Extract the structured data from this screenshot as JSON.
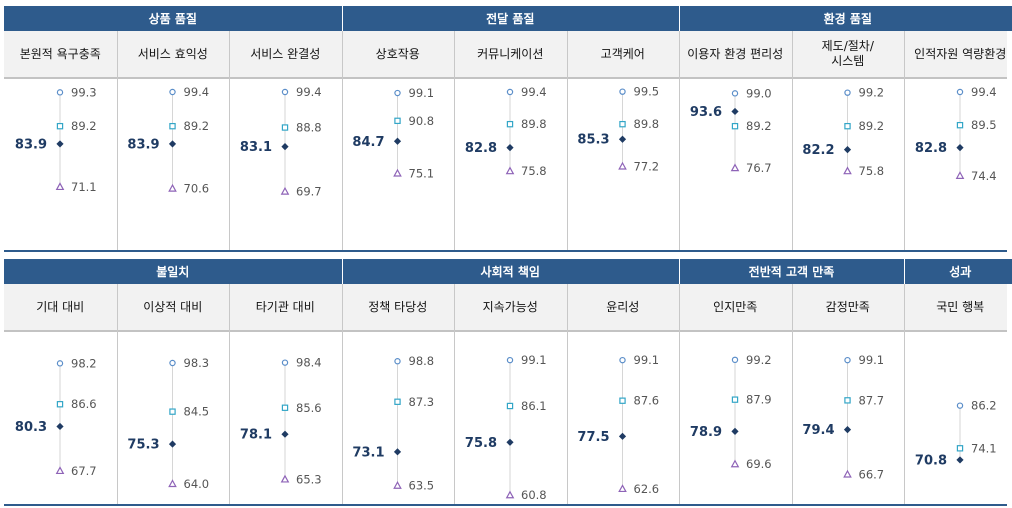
{
  "chart_data": [
    {
      "type": "dot-plot",
      "groups": [
        {
          "label": "상품 품질",
          "categories": [
            "본원적 욕구충족",
            "서비스 효익성",
            "서비스 완결성"
          ]
        },
        {
          "label": "전달 품질",
          "categories": [
            "상호작용",
            "커뮤니케이션",
            "고객케어"
          ]
        },
        {
          "label": "환경 품질",
          "categories": [
            "이용자 환경 편리성",
            "제도/절차/\n시스템",
            "인적자원 역량환경"
          ]
        }
      ],
      "categories": [
        "본원적 욕구충족",
        "서비스 효익성",
        "서비스 완결성",
        "상호작용",
        "커뮤니케이션",
        "고객케어",
        "이용자 환경 편리성",
        "제도/절차/\n시스템",
        "인적자원 역량환경"
      ],
      "series": [
        {
          "values": [
            99.3,
            99.4,
            99.4,
            99.1,
            99.4,
            99.5,
            99.0,
            99.2,
            99.4
          ],
          "marker": "circle",
          "color": "#5b8ec9"
        },
        {
          "values": [
            89.2,
            89.2,
            88.8,
            90.8,
            89.8,
            89.8,
            89.2,
            89.2,
            89.5
          ],
          "marker": "square",
          "color": "#33a6c7"
        },
        {
          "values": [
            83.9,
            83.9,
            83.1,
            84.7,
            82.8,
            85.3,
            93.6,
            82.2,
            82.8
          ],
          "marker": "diamond",
          "color": "#1f3b63"
        },
        {
          "values": [
            71.1,
            70.6,
            69.7,
            75.1,
            75.8,
            77.2,
            76.7,
            75.8,
            74.4
          ],
          "marker": "triangle",
          "color": "#8e63b7"
        }
      ],
      "ylim": [
        60,
        100
      ]
    },
    {
      "type": "dot-plot",
      "groups": [
        {
          "label": "불일치",
          "categories": [
            "기대 대비",
            "이상적 대비",
            "타기관 대비"
          ]
        },
        {
          "label": "사회적 책임",
          "categories": [
            "정책 타당성",
            "지속가능성",
            "윤리성"
          ]
        },
        {
          "label": "전반적 고객 만족",
          "categories": [
            "인지만족",
            "감정만족"
          ]
        },
        {
          "label": "성과",
          "categories": [
            "국민 행복"
          ]
        }
      ],
      "categories": [
        "기대 대비",
        "이상적 대비",
        "타기관 대비",
        "정책 타당성",
        "지속가능성",
        "윤리성",
        "인지만족",
        "감정만족",
        "국민 행복"
      ],
      "series": [
        {
          "values": [
            98.2,
            98.3,
            98.4,
            98.8,
            99.1,
            99.1,
            99.2,
            99.1,
            86.2
          ],
          "marker": "circle",
          "color": "#5b8ec9"
        },
        {
          "values": [
            86.6,
            84.5,
            85.6,
            87.3,
            86.1,
            87.6,
            87.9,
            87.7,
            74.1
          ],
          "marker": "square",
          "color": "#33a6c7"
        },
        {
          "values": [
            80.3,
            75.3,
            78.1,
            73.1,
            75.8,
            77.5,
            78.9,
            79.4,
            70.8
          ],
          "marker": "diamond",
          "color": "#1f3b63"
        },
        {
          "values": [
            67.7,
            64.0,
            65.3,
            63.5,
            60.8,
            62.6,
            69.6,
            66.7,
            null
          ],
          "marker": "triangle",
          "color": "#8e63b7"
        }
      ],
      "ylim": [
        60,
        100
      ]
    }
  ]
}
